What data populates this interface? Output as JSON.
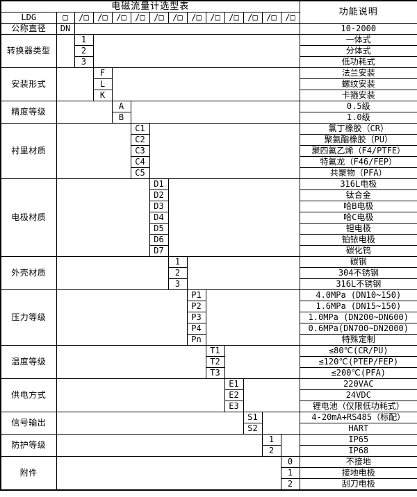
{
  "title": "电磁流量计选型表",
  "function_header": "功能说明",
  "model_row": {
    "prefix": "LDG",
    "base_box": "□",
    "option_box": "/□",
    "box_count": 12
  },
  "diameter_row": {
    "label": "公称直径",
    "code": "DN",
    "value": "10-2000"
  },
  "sections": [
    {
      "label": "转换器类型",
      "col": 1,
      "options": [
        {
          "code": "1",
          "desc": "一体式"
        },
        {
          "code": "2",
          "desc": "分体式"
        },
        {
          "code": "3",
          "desc": "低功耗式"
        }
      ]
    },
    {
      "label": "安装形式",
      "col": 2,
      "options": [
        {
          "code": "F",
          "desc": "法兰安装"
        },
        {
          "code": "L",
          "desc": "螺纹安装"
        },
        {
          "code": "K",
          "desc": "卡箍安装"
        }
      ]
    },
    {
      "label": "精度等级",
      "col": 3,
      "options": [
        {
          "code": "A",
          "desc": "0.5级"
        },
        {
          "code": "B",
          "desc": "1.0级"
        }
      ]
    },
    {
      "label": "衬里材质",
      "col": 4,
      "options": [
        {
          "code": "C1",
          "desc": "氯丁橡胶（CR）"
        },
        {
          "code": "C2",
          "desc": "聚氨酯橡胶（PU）"
        },
        {
          "code": "C3",
          "desc": "聚四氟乙烯（F4/PTFE）"
        },
        {
          "code": "C4",
          "desc": "特氟龙（F46/FEP）"
        },
        {
          "code": "C5",
          "desc": "共聚物（PFA）"
        }
      ]
    },
    {
      "label": "电极材质",
      "col": 5,
      "options": [
        {
          "code": "D1",
          "desc": "316L电极"
        },
        {
          "code": "D2",
          "desc": "钛合金"
        },
        {
          "code": "D3",
          "desc": "哈B电极"
        },
        {
          "code": "D4",
          "desc": "哈C电极"
        },
        {
          "code": "D5",
          "desc": "钽电极"
        },
        {
          "code": "D6",
          "desc": "铂铱电极"
        },
        {
          "code": "D7",
          "desc": "碳化钨"
        }
      ]
    },
    {
      "label": "外壳材质",
      "col": 6,
      "options": [
        {
          "code": "1",
          "desc": "碳钢"
        },
        {
          "code": "2",
          "desc": "304不锈钢"
        },
        {
          "code": "3",
          "desc": "316L不锈钢"
        }
      ]
    },
    {
      "label": "压力等级",
      "col": 7,
      "options": [
        {
          "code": "P1",
          "desc": "4.0MPa (DN10~150)",
          "align": "left"
        },
        {
          "code": "P2",
          "desc": "1.6MPa (DN15~150)",
          "align": "left"
        },
        {
          "code": "P3",
          "desc": "1.0MPa (DN200~DN600)",
          "align": "left"
        },
        {
          "code": "P4",
          "desc": "0.6MPa(DN700~DN2000)",
          "align": "left"
        },
        {
          "code": "Pn",
          "desc": "特殊定制"
        }
      ]
    },
    {
      "label": "温度等级",
      "col": 8,
      "options": [
        {
          "code": "T1",
          "desc": "≤80℃(CR/PU)"
        },
        {
          "code": "T2",
          "desc": "≤120℃(PTEP/FEP)"
        },
        {
          "code": "T3",
          "desc": "≤200℃(PFA)"
        }
      ]
    },
    {
      "label": "供电方式",
      "col": 9,
      "options": [
        {
          "code": "E1",
          "desc": "220VAC"
        },
        {
          "code": "E2",
          "desc": "24VDC"
        },
        {
          "code": "E3",
          "desc": "锂电池（仅限低功耗式）"
        }
      ]
    },
    {
      "label": "信号输出",
      "col": 10,
      "options": [
        {
          "code": "S1",
          "desc": "4-20mA+RS485（标配）"
        },
        {
          "code": "S2",
          "desc": "HART"
        }
      ]
    },
    {
      "label": "防护等级",
      "col": 11,
      "options": [
        {
          "code": "1",
          "desc": "IP65"
        },
        {
          "code": "2",
          "desc": "IP68"
        }
      ]
    },
    {
      "label": "附件",
      "col": 12,
      "options": [
        {
          "code": "0",
          "desc": "不接地"
        },
        {
          "code": "1",
          "desc": "接地电极"
        },
        {
          "code": "2",
          "desc": "刮刀电极"
        }
      ]
    }
  ]
}
